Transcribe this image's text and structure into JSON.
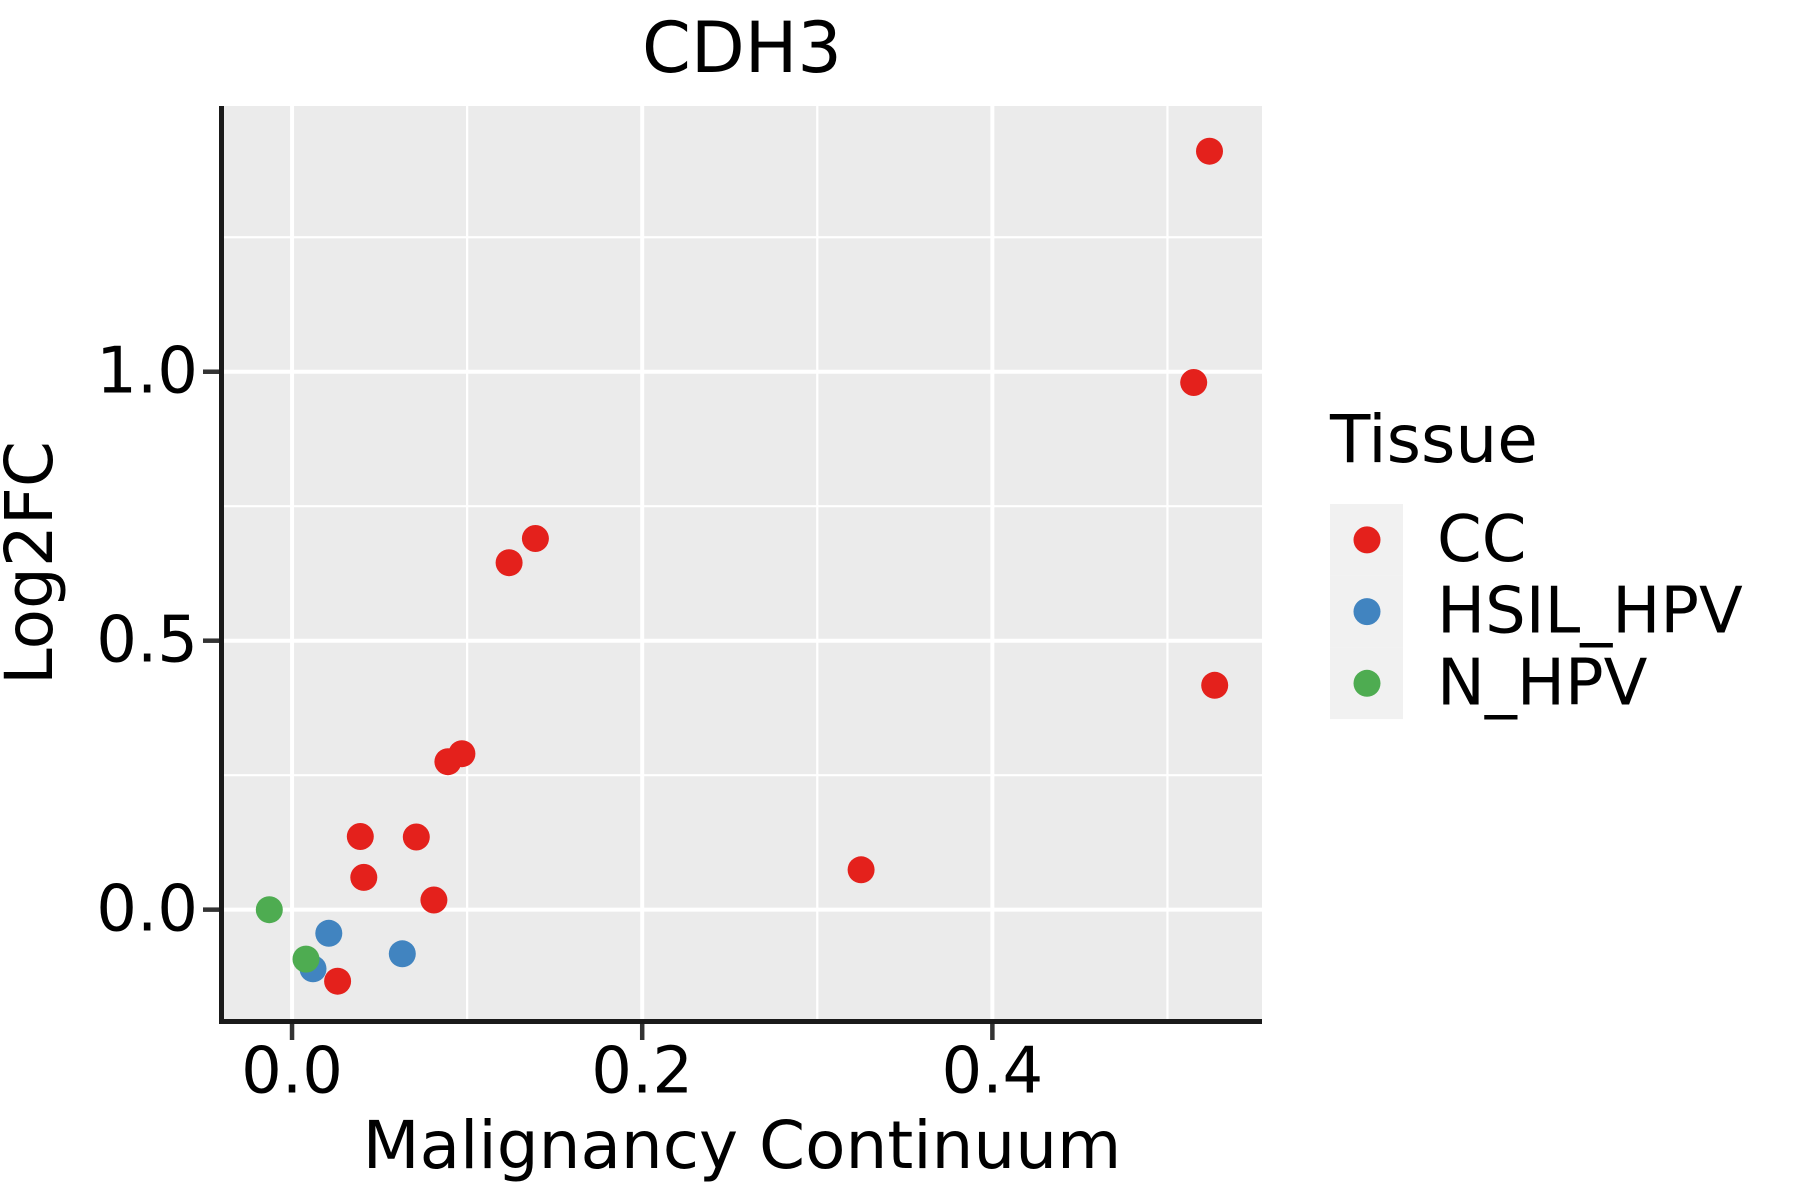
{
  "title": "CDH3",
  "axes": {
    "x": {
      "label": "Malignancy Continuum",
      "ticks": [
        {
          "value": 0.0,
          "label": "0.0"
        },
        {
          "value": 0.2,
          "label": "0.2"
        },
        {
          "value": 0.4,
          "label": "0.4"
        }
      ],
      "minor_ticks": [
        0.1,
        0.3,
        0.5
      ],
      "range": [
        -0.04,
        0.554
      ]
    },
    "y": {
      "label": "Log2FC",
      "ticks": [
        {
          "value": 0.0,
          "label": "0.0"
        },
        {
          "value": 0.5,
          "label": "0.5"
        },
        {
          "value": 1.0,
          "label": "1.0"
        }
      ],
      "minor_ticks": [
        0.25,
        0.75,
        1.25
      ],
      "range": [
        -0.207,
        1.494
      ]
    }
  },
  "legend": {
    "title": "Tissue",
    "entries": [
      {
        "label": "CC",
        "color": "#E4211C"
      },
      {
        "label": "HSIL_HPV",
        "color": "#4184C0"
      },
      {
        "label": "N_HPV",
        "color": "#4EAC51"
      }
    ]
  },
  "chart_data": {
    "type": "scatter",
    "title": "CDH3",
    "xlabel": "Malignancy Continuum",
    "ylabel": "Log2FC",
    "xlim": [
      -0.04,
      0.554
    ],
    "ylim": [
      -0.207,
      1.494
    ],
    "grid": true,
    "legend_position": "right",
    "series": [
      {
        "name": "CC",
        "color": "#E4211C",
        "points": [
          [
            0.524,
            1.41
          ],
          [
            0.515,
            0.98
          ],
          [
            0.139,
            0.69
          ],
          [
            0.124,
            0.645
          ],
          [
            0.097,
            0.29
          ],
          [
            0.089,
            0.275
          ],
          [
            0.039,
            0.136
          ],
          [
            0.071,
            0.135
          ],
          [
            0.041,
            0.06
          ],
          [
            0.081,
            0.018
          ],
          [
            0.026,
            -0.133
          ],
          [
            0.325,
            0.074
          ],
          [
            0.527,
            0.417
          ]
        ]
      },
      {
        "name": "HSIL_HPV",
        "color": "#4184C0",
        "points": [
          [
            0.021,
            -0.044
          ],
          [
            0.063,
            -0.082
          ],
          [
            0.012,
            -0.11
          ]
        ]
      },
      {
        "name": "N_HPV",
        "color": "#4EAC51",
        "points": [
          [
            -0.013,
            0.0
          ],
          [
            0.008,
            -0.092
          ]
        ]
      }
    ]
  },
  "style": {
    "panel_bg": "#EBEBEB",
    "grid_color": "#FFFFFF",
    "legend_key_bg": "#F1F1F1",
    "spine_color": "#1A1A1A",
    "tick_color": "#333333",
    "point_radius": 13.5
  }
}
